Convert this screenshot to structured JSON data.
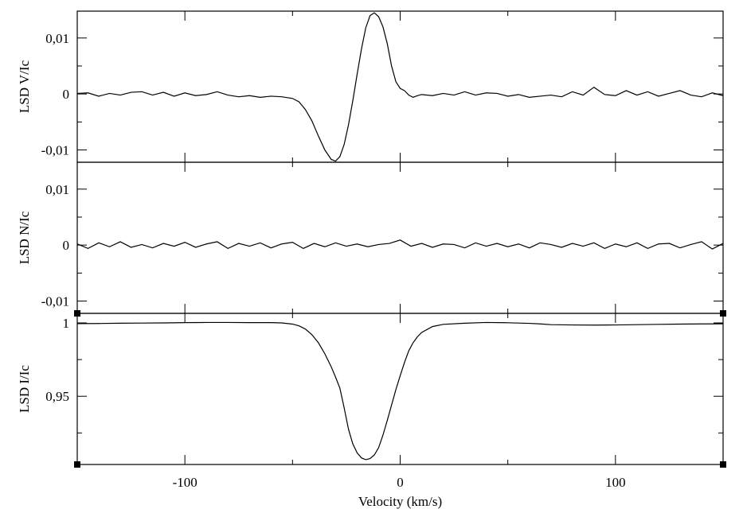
{
  "chart_data": [
    {
      "type": "line",
      "panel": "V",
      "ylabel": "LSD V/Ic",
      "xlim": [
        -150,
        150
      ],
      "ylim": [
        -0.0122,
        0.0148
      ],
      "yticks": [
        -0.01,
        0,
        0.01
      ],
      "ytick_labels": [
        "-0,01",
        "0",
        "0,01"
      ],
      "xticks": [
        -100,
        0,
        100
      ],
      "xtick_labels": [],
      "grid": false,
      "series": [
        {
          "x": [
            -150,
            -145,
            -140,
            -135,
            -130,
            -125,
            -120,
            -115,
            -110,
            -105,
            -100,
            -95,
            -90,
            -85,
            -80,
            -75,
            -70,
            -65,
            -60,
            -55,
            -50,
            -47,
            -44,
            -41,
            -38,
            -35,
            -32,
            -30,
            -28,
            -26,
            -24,
            -22,
            -20,
            -18,
            -16,
            -14,
            -12,
            -10,
            -8,
            -6,
            -4,
            -2,
            0,
            2,
            4,
            6,
            8,
            10,
            15,
            20,
            25,
            30,
            35,
            40,
            45,
            50,
            55,
            60,
            65,
            70,
            75,
            80,
            85,
            90,
            95,
            100,
            105,
            110,
            115,
            120,
            125,
            130,
            135,
            140,
            145,
            150
          ],
          "y": [
            0.0001,
            0.0002,
            -0.0004,
            0.0001,
            -0.0002,
            0.0003,
            0.0004,
            -0.0002,
            0.0003,
            -0.0004,
            0.0002,
            -0.0003,
            -0.0001,
            0.0004,
            -0.0002,
            -0.0005,
            -0.0003,
            -0.0006,
            -0.0004,
            -0.0005,
            -0.0008,
            -0.0014,
            -0.0028,
            -0.0048,
            -0.0075,
            -0.01,
            -0.0117,
            -0.012,
            -0.0112,
            -0.009,
            -0.0055,
            -0.0012,
            0.0035,
            0.008,
            0.0118,
            0.014,
            0.0145,
            0.0138,
            0.012,
            0.009,
            0.005,
            0.0022,
            0.001,
            0.0006,
            -0.0002,
            -0.0006,
            -0.0003,
            -0.0001,
            -0.0003,
            0.0001,
            -0.0002,
            0.0004,
            -0.0002,
            0.0002,
            0.0001,
            -0.0004,
            -0.0001,
            -0.0006,
            -0.0004,
            -0.0002,
            -0.0005,
            0.0004,
            -0.0002,
            0.0012,
            -0.0001,
            -0.0003,
            0.0006,
            -0.0002,
            0.0004,
            -0.0004,
            0.0001,
            0.0006,
            -0.0002,
            -0.0005,
            0.0002,
            -0.0003
          ]
        }
      ]
    },
    {
      "type": "line",
      "panel": "N",
      "ylabel": "LSD N/Ic",
      "xlim": [
        -150,
        150
      ],
      "ylim": [
        -0.0122,
        0.0148
      ],
      "yticks": [
        -0.01,
        0,
        0.01
      ],
      "ytick_labels": [
        "-0,01",
        "0",
        "0,01"
      ],
      "xticks": [
        -100,
        0,
        100
      ],
      "xtick_labels": [],
      "grid": false,
      "series": [
        {
          "x": [
            -150,
            -145,
            -140,
            -135,
            -130,
            -125,
            -120,
            -115,
            -110,
            -105,
            -100,
            -95,
            -90,
            -85,
            -80,
            -75,
            -70,
            -65,
            -60,
            -55,
            -50,
            -45,
            -40,
            -35,
            -30,
            -25,
            -20,
            -15,
            -10,
            -5,
            0,
            5,
            10,
            15,
            20,
            25,
            30,
            35,
            40,
            45,
            50,
            55,
            60,
            65,
            70,
            75,
            80,
            85,
            90,
            95,
            100,
            105,
            110,
            115,
            120,
            125,
            130,
            135,
            140,
            145,
            150
          ],
          "y": [
            0.0002,
            -0.0006,
            0.0004,
            -0.0003,
            0.0006,
            -0.0004,
            0.0001,
            -0.0005,
            0.0003,
            -0.0002,
            0.0005,
            -0.0004,
            0.0002,
            0.0006,
            -0.0006,
            0.0003,
            -0.0002,
            0.0004,
            -0.0005,
            0.0002,
            0.0005,
            -0.0006,
            0.0003,
            -0.0003,
            0.0004,
            -0.0002,
            0.0002,
            -0.0003,
            0.0001,
            0.0003,
            0.0009,
            -0.0002,
            0.0003,
            -0.0004,
            0.0002,
            0.0001,
            -0.0005,
            0.0004,
            -0.0002,
            0.0003,
            -0.0003,
            0.0002,
            -0.0005,
            0.0004,
            0.0001,
            -0.0004,
            0.0003,
            -0.0002,
            0.0004,
            -0.0006,
            0.0002,
            -0.0003,
            0.0004,
            -0.0006,
            0.0002,
            0.0003,
            -0.0005,
            0.0001,
            0.0006,
            -0.0007,
            0.0003
          ]
        }
      ]
    },
    {
      "type": "line",
      "panel": "I",
      "ylabel": "LSD I/Ic",
      "xlabel": "Velocity (km/s)",
      "xlim": [
        -150,
        150
      ],
      "ylim": [
        0.9035,
        1.0065
      ],
      "yticks": [
        0.95,
        1
      ],
      "ytick_labels": [
        "0,95",
        "1"
      ],
      "xticks": [
        -100,
        0,
        100
      ],
      "xtick_labels": [
        "-100",
        "0",
        "100"
      ],
      "grid": false,
      "series": [
        {
          "x": [
            -150,
            -140,
            -130,
            -120,
            -110,
            -100,
            -90,
            -80,
            -70,
            -60,
            -55,
            -50,
            -47,
            -44,
            -41,
            -38,
            -35,
            -32,
            -30,
            -28,
            -26,
            -24,
            -22,
            -20,
            -18,
            -16,
            -14,
            -12,
            -10,
            -8,
            -6,
            -4,
            -2,
            0,
            2,
            4,
            6,
            8,
            10,
            15,
            20,
            30,
            40,
            50,
            60,
            65,
            70,
            80,
            90,
            100,
            110,
            120,
            130,
            140,
            150
          ],
          "y": [
            0.9995,
            0.9996,
            0.9998,
            0.9999,
            1.0,
            1.0002,
            1.0003,
            1.0003,
            1.0002,
            1.0002,
            1.0,
            0.9992,
            0.998,
            0.9958,
            0.992,
            0.9865,
            0.979,
            0.97,
            0.963,
            0.9555,
            0.942,
            0.9275,
            0.9175,
            0.9115,
            0.908,
            0.9068,
            0.9075,
            0.91,
            0.915,
            0.9235,
            0.9335,
            0.944,
            0.9545,
            0.964,
            0.973,
            0.981,
            0.9865,
            0.9905,
            0.9935,
            0.9975,
            0.999,
            0.9998,
            1.0003,
            1.0001,
            0.9997,
            0.9993,
            0.9988,
            0.9986,
            0.9985,
            0.9986,
            0.9988,
            0.999,
            0.9992,
            0.9993,
            0.9994
          ]
        }
      ]
    }
  ]
}
